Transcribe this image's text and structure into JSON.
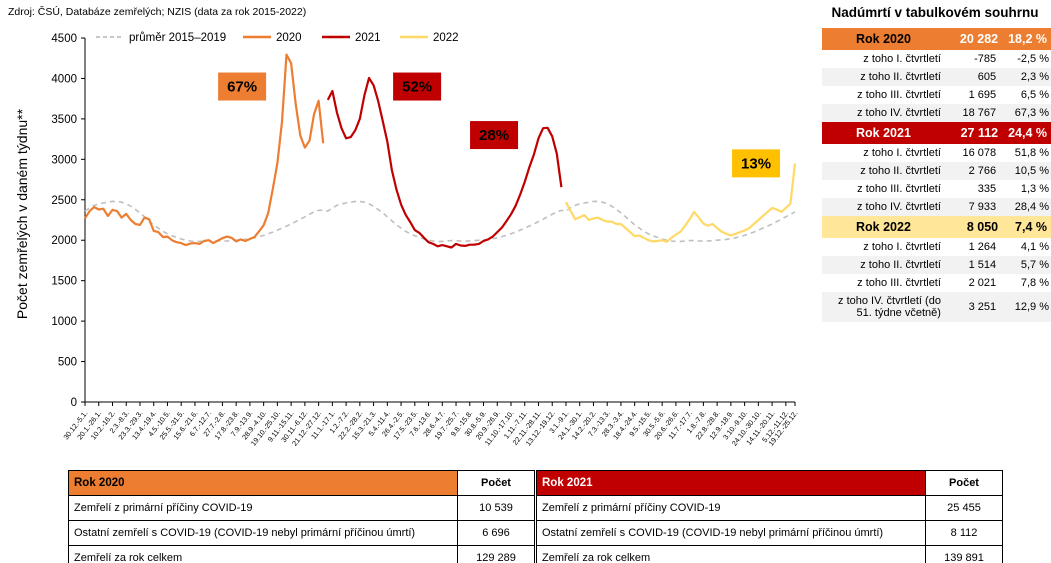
{
  "source_note": "Zdroj: ČSÚ, Databáze zemřelých; NZIS (data za rok 2015-2022)",
  "colors": {
    "orange_2020": "#ED7D31",
    "red_2021": "#C00000",
    "yellow_2022_line": "#FFD966",
    "yellow_annotation": "#FFC000",
    "yellow_2022_header": "#FFE699",
    "gray_average": "#BFBFBF",
    "row_alt": "#F2F2F2"
  },
  "chart_data": {
    "type": "line",
    "title": "",
    "xlabel": "",
    "ylabel": "Počet zemřelých v daném týdnu**",
    "ylim": [
      0,
      4500
    ],
    "ytick_step": 500,
    "grid": false,
    "legend_position": "top",
    "x_total_weeks": 156,
    "x_tick_positions": [
      0,
      3,
      6,
      9,
      12,
      15,
      18,
      21,
      24,
      27,
      30,
      33,
      36,
      39,
      42,
      45,
      48,
      51,
      54,
      57,
      60,
      63,
      66,
      69,
      72,
      75,
      78,
      81,
      84,
      87,
      90,
      93,
      96,
      99,
      102,
      105,
      108,
      111,
      114,
      117,
      120,
      123,
      126,
      129,
      132,
      135,
      138,
      141,
      144,
      147,
      150,
      153,
      155
    ],
    "x_tick_labels": [
      "30.12.-5.1.",
      "20.1.-26.1.",
      "10.2.-16.2.",
      "2.3.-8.3.",
      "23.3.-29.3.",
      "13.4.-19.4.",
      "4.5.-10.5.",
      "25.5.-31.5.",
      "15.6.-21.6.",
      "6.7.-12.7.",
      "27.7.-2.8.",
      "17.8.-23.8.",
      "7.9.-13.9.",
      "28.9.-4.10.",
      "19.10.-25.10.",
      "9.11.-15.11.",
      "30.11.-6.12.",
      "21.12.-27.12.",
      "11.1.-17.1.",
      "1.2.-7.2.",
      "22.2.-28.2.",
      "15.3.-21.3.",
      "5.4.-11.4.",
      "26.4.-2.5.",
      "17.5.-23.5.",
      "7.6.-13.6.",
      "28.6.-4.7.",
      "19.7.-25.7.",
      "9.8.-15.8.",
      "30.8.-5.9.",
      "20.9.-26.9.",
      "11.10.-17.10.",
      "1.11.-7.11.",
      "22.11.-28.11.",
      "13.12.-19.12.",
      "3.1.-9.1.",
      "24.1.-30.1.",
      "14.2.-20.2.",
      "7.3.-13.3.",
      "28.3.-3.4.",
      "18.4.-24.4.",
      "9.5.-15.5.",
      "30.5.-5.6.",
      "20.6.-26.6.",
      "11.7.-17.7.",
      "1.8.-7.8.",
      "22.8.-28.8.",
      "12.9.-18.9.",
      "3.10.-9.10.",
      "24.10.-30.10.",
      "14.11.-20.11.",
      "5.12.-11.12.",
      "19.12.-25.12."
    ],
    "series": [
      {
        "name": "průměr 2015–2019",
        "color": "#BFBFBF",
        "dashed": true,
        "repeats_for_years": [
          "2020",
          "2021",
          "2022"
        ],
        "weekly_pattern": [
          2360,
          2400,
          2430,
          2450,
          2460,
          2470,
          2480,
          2480,
          2470,
          2450,
          2420,
          2380,
          2340,
          2290,
          2240,
          2190,
          2150,
          2110,
          2080,
          2055,
          2035,
          2015,
          2000,
          1990,
          1985,
          1985,
          1990,
          1995,
          1995,
          1990,
          1990,
          1990,
          1995,
          2000,
          2005,
          2010,
          2020,
          2030,
          2045,
          2060,
          2080,
          2100,
          2125,
          2150,
          2175,
          2200,
          2230,
          2260,
          2290,
          2320,
          2350,
          2370
        ]
      },
      {
        "name": "2020",
        "color": "#ED7D31",
        "dashed": false,
        "start_week": 0,
        "values": [
          2270,
          2360,
          2410,
          2380,
          2390,
          2300,
          2375,
          2360,
          2280,
          2325,
          2250,
          2200,
          2190,
          2280,
          2260,
          2115,
          2100,
          2040,
          2045,
          2000,
          1975,
          1965,
          1940,
          1960,
          1965,
          1955,
          1990,
          2000,
          1965,
          1995,
          2025,
          2045,
          2030,
          1985,
          2010,
          1990,
          2015,
          2040,
          2110,
          2185,
          2335,
          2635,
          2955,
          3465,
          4295,
          4190,
          3685,
          3295,
          3145,
          3230,
          3555,
          3725,
          3200
        ]
      },
      {
        "name": "2021",
        "color": "#C00000",
        "dashed": false,
        "start_week": 53,
        "values": [
          3735,
          3845,
          3580,
          3385,
          3260,
          3275,
          3360,
          3500,
          3790,
          4005,
          3915,
          3720,
          3475,
          3220,
          2865,
          2625,
          2440,
          2315,
          2225,
          2125,
          2090,
          2030,
          1975,
          1955,
          1925,
          1940,
          1925,
          1910,
          1955,
          1935,
          1930,
          1945,
          1945,
          1955,
          1990,
          2010,
          2045,
          2100,
          2155,
          2235,
          2320,
          2425,
          2565,
          2720,
          2900,
          3060,
          3260,
          3385,
          3390,
          3285,
          3070,
          2655
        ]
      },
      {
        "name": "2022",
        "color": "#FFD966",
        "dashed": false,
        "start_week": 105,
        "values": [
          2470,
          2365,
          2260,
          2285,
          2310,
          2250,
          2270,
          2280,
          2250,
          2230,
          2230,
          2200,
          2200,
          2150,
          2100,
          2050,
          2060,
          2030,
          2000,
          1985,
          1990,
          2000,
          1980,
          2030,
          2070,
          2105,
          2180,
          2260,
          2350,
          2280,
          2205,
          2180,
          2200,
          2150,
          2105,
          2080,
          2060,
          2080,
          2100,
          2120,
          2150,
          2200,
          2250,
          2300,
          2350,
          2400,
          2380,
          2350,
          2400,
          2450,
          2950
        ]
      }
    ],
    "annotations": [
      {
        "label": "67%",
        "bg": "#ED7D31",
        "text_color": "#000000",
        "week_x": 34.3,
        "value_y": 3900
      },
      {
        "label": "52%",
        "bg": "#C00000",
        "text_color": "#FFFFFF",
        "week_x": 72.5,
        "value_y": 3900
      },
      {
        "label": "28%",
        "bg": "#C00000",
        "text_color": "#FFFFFF",
        "week_x": 89.3,
        "value_y": 3300
      },
      {
        "label": "13%",
        "bg": "#FFC000",
        "text_color": "#000000",
        "week_x": 146.5,
        "value_y": 2950
      }
    ]
  },
  "summary_panel": {
    "title": "Nadúmrtí v tabulkovém souhrnu",
    "rows": [
      {
        "label": "Rok 2020",
        "value": "20 282",
        "pct": "18,2 %"
      },
      {
        "label": "z toho I. čtvrtletí",
        "value": "-785",
        "pct": "-2,5 %"
      },
      {
        "label": "z toho II. čtvrtletí",
        "value": "605",
        "pct": "2,3 %"
      },
      {
        "label": "z toho III. čtvrtletí",
        "value": "1 695",
        "pct": "6,5 %"
      },
      {
        "label": "z toho IV. čtvrtletí",
        "value": "18 767",
        "pct": "67,3 %"
      },
      {
        "label": "Rok 2021",
        "value": "27 112",
        "pct": "24,4 %"
      },
      {
        "label": "z toho I. čtvrtletí",
        "value": "16 078",
        "pct": "51,8 %"
      },
      {
        "label": "z toho II. čtvrtletí",
        "value": "2 766",
        "pct": "10,5 %"
      },
      {
        "label": "z toho III. čtvrtletí",
        "value": "335",
        "pct": "1,3 %"
      },
      {
        "label": "z toho IV. čtvrtletí",
        "value": "7 933",
        "pct": "28,4 %"
      },
      {
        "label": "Rok 2022",
        "value": "8 050",
        "pct": "7,4 %"
      },
      {
        "label": "z toho I. čtvrtletí",
        "value": "1 264",
        "pct": "4,1 %"
      },
      {
        "label": "z toho II. čtvrtletí",
        "value": "1 514",
        "pct": "5,7 %"
      },
      {
        "label": "z toho III. čtvrtletí",
        "value": "2 021",
        "pct": "7,8 %"
      },
      {
        "label": "z toho IV. čtvrtletí (do 51. týdne včetně)",
        "value": "3 251",
        "pct": "12,9 %"
      }
    ]
  },
  "bottom_tables": [
    {
      "header_year": "Rok 2020",
      "header_count": "Počet",
      "rows": [
        {
          "label": "Zemřelí z primární příčiny COVID-19",
          "value": "10 539"
        },
        {
          "label": "Ostatní zemřelí s COVID-19 (COVID-19 nebyl primární příčinou úmrtí)",
          "value": "6 696"
        },
        {
          "label": "Zemřelí za rok celkem",
          "value": "129 289"
        }
      ]
    },
    {
      "header_year": "Rok 2021",
      "header_count": "Počet",
      "rows": [
        {
          "label": "Zemřelí z primární příčiny COVID-19",
          "value": "25 455"
        },
        {
          "label": "Ostatní zemřelí s COVID-19 (COVID-19 nebyl primární příčinou úmrtí)",
          "value": "8 112"
        },
        {
          "label": "Zemřelí za rok celkem",
          "value": "139 891"
        }
      ]
    }
  ]
}
